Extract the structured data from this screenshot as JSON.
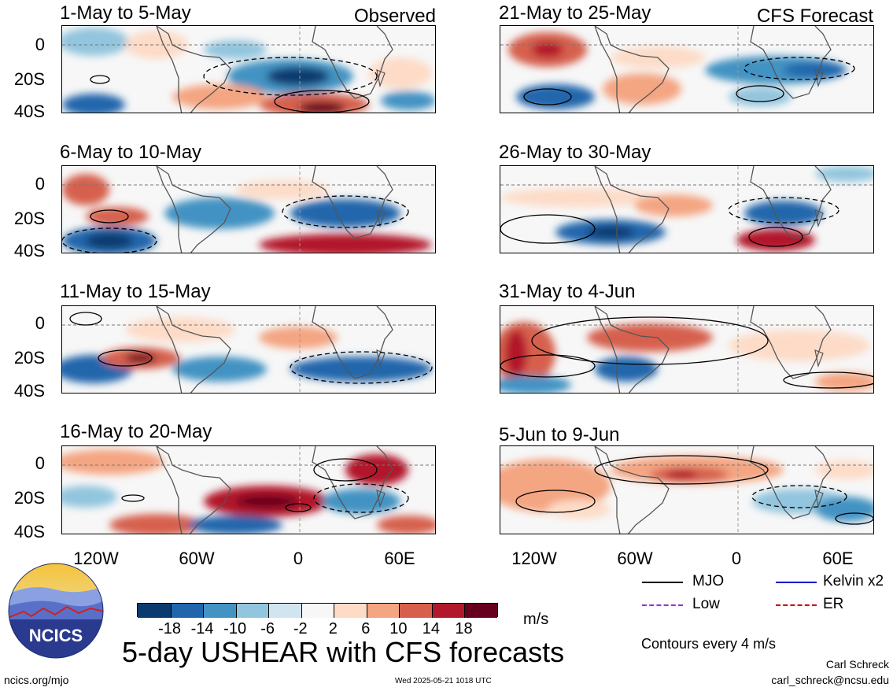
{
  "header": {
    "left_label": "Observed",
    "right_label": "CFS Forecast"
  },
  "panels_left": [
    {
      "title": "1-May to 5-May"
    },
    {
      "title": "6-May to 10-May"
    },
    {
      "title": "11-May to 15-May"
    },
    {
      "title": "16-May to 20-May"
    }
  ],
  "panels_right": [
    {
      "title": "21-May to 25-May"
    },
    {
      "title": "26-May to 30-May"
    },
    {
      "title": "31-May to 4-Jun"
    },
    {
      "title": "5-Jun to 9-Jun"
    }
  ],
  "y_axis": [
    "0",
    "20S",
    "40S"
  ],
  "x_axis": [
    "120W",
    "60W",
    "0",
    "60E"
  ],
  "colorbar": {
    "labels": [
      "-18",
      "-14",
      "-10",
      "-6",
      "-2",
      "2",
      "6",
      "10",
      "14",
      "18"
    ],
    "colors": [
      "#0b3a6e",
      "#2166ac",
      "#4393c3",
      "#92c5de",
      "#d1e5f0",
      "#f7f7f7",
      "#fddbc7",
      "#f4a582",
      "#d6604d",
      "#b2182b",
      "#67001f"
    ],
    "units": "m/s"
  },
  "legend": [
    {
      "name": "MJO",
      "color": "#000000"
    },
    {
      "name": "Kelvin x2",
      "color": "#0000cc"
    },
    {
      "name": "Low",
      "color": "#9932cc"
    },
    {
      "name": "ER",
      "color": "#cc0000"
    }
  ],
  "contours_note": "Contours every 4 m/s",
  "title": "5-day USHEAR with CFS forecasts",
  "logo_text": "NCICS",
  "footer": {
    "url": "ncics.org/mjo",
    "timestamp": "Wed 2025-05-21 1018 UTC",
    "author": "Carl Schreck",
    "email": "carl_schreck@ncsu.edu"
  }
}
